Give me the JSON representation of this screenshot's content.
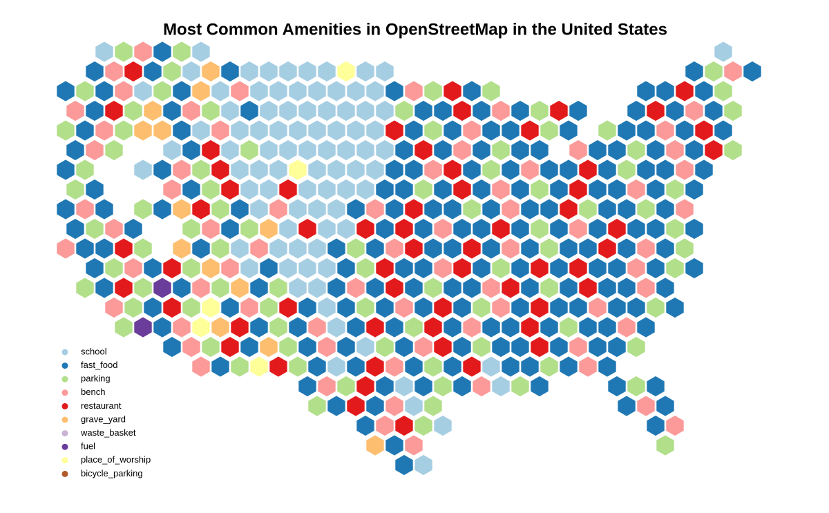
{
  "map": {
    "title": "Most Common Amenities in OpenStreetMap in the United States",
    "legend": [
      {
        "name": "school",
        "color": "#a6cee3"
      },
      {
        "name": "fast_food",
        "color": "#1f78b4"
      },
      {
        "name": "parking",
        "color": "#b2df8a"
      },
      {
        "name": "bench",
        "color": "#fb9a99"
      },
      {
        "name": "restaurant",
        "color": "#e31a1c"
      },
      {
        "name": "grave_yard",
        "color": "#fdbf6f"
      },
      {
        "name": "waste_basket",
        "color": "#cab2d6"
      },
      {
        "name": "fuel",
        "color": "#6a3d9a"
      },
      {
        "name": "place_of_worship",
        "color": "#ffff99"
      },
      {
        "name": "bicycle_parking",
        "color": "#b15928"
      }
    ],
    "hex_grid": [
      [
        null,
        null,
        0,
        2,
        3,
        1,
        2,
        0,
        null,
        null,
        null,
        null,
        null,
        null,
        null,
        null,
        null,
        null,
        null,
        null,
        null,
        null,
        null,
        null,
        null,
        null,
        null,
        null,
        null,
        null,
        null,
        null,
        null,
        null,
        0,
        null
      ],
      [
        null,
        1,
        3,
        4,
        1,
        2,
        0,
        5,
        1,
        0,
        0,
        0,
        0,
        0,
        8,
        0,
        0,
        null,
        null,
        null,
        null,
        null,
        null,
        null,
        null,
        null,
        null,
        null,
        null,
        null,
        null,
        null,
        1,
        2,
        3,
        1
      ],
      [
        1,
        2,
        1,
        3,
        0,
        2,
        1,
        5,
        0,
        3,
        0,
        0,
        0,
        0,
        0,
        0,
        0,
        1,
        3,
        2,
        4,
        1,
        2,
        null,
        null,
        null,
        null,
        null,
        null,
        null,
        1,
        1,
        4,
        1,
        2,
        null
      ],
      [
        3,
        1,
        4,
        2,
        5,
        1,
        3,
        2,
        0,
        1,
        0,
        0,
        0,
        0,
        0,
        0,
        0,
        2,
        1,
        1,
        4,
        1,
        3,
        1,
        2,
        4,
        1,
        null,
        null,
        1,
        4,
        1,
        3,
        1,
        2,
        null
      ],
      [
        2,
        1,
        3,
        2,
        5,
        5,
        1,
        0,
        3,
        0,
        0,
        0,
        0,
        0,
        0,
        0,
        0,
        4,
        1,
        2,
        1,
        3,
        1,
        1,
        4,
        2,
        1,
        null,
        2,
        1,
        1,
        3,
        1,
        4,
        1,
        null
      ],
      [
        1,
        3,
        2,
        null,
        null,
        0,
        1,
        4,
        0,
        2,
        0,
        0,
        0,
        0,
        0,
        0,
        0,
        1,
        4,
        1,
        3,
        1,
        2,
        1,
        1,
        null,
        3,
        1,
        1,
        2,
        1,
        3,
        1,
        4,
        2,
        null
      ],
      [
        1,
        2,
        null,
        null,
        0,
        1,
        3,
        2,
        4,
        0,
        0,
        0,
        8,
        0,
        0,
        0,
        0,
        1,
        1,
        3,
        4,
        1,
        2,
        1,
        3,
        1,
        1,
        4,
        1,
        2,
        1,
        1,
        3,
        1,
        null,
        null
      ],
      [
        2,
        1,
        null,
        null,
        null,
        3,
        1,
        2,
        4,
        0,
        0,
        4,
        0,
        0,
        0,
        0,
        1,
        1,
        2,
        1,
        4,
        1,
        3,
        1,
        2,
        1,
        4,
        1,
        1,
        3,
        1,
        2,
        1,
        null,
        null,
        null
      ],
      [
        1,
        3,
        1,
        null,
        2,
        1,
        5,
        4,
        2,
        1,
        0,
        3,
        0,
        0,
        0,
        1,
        3,
        1,
        4,
        1,
        1,
        2,
        1,
        3,
        1,
        1,
        4,
        2,
        1,
        1,
        2,
        1,
        3,
        null,
        null,
        null
      ],
      [
        1,
        2,
        3,
        1,
        null,
        null,
        2,
        3,
        1,
        2,
        5,
        0,
        4,
        0,
        0,
        4,
        1,
        4,
        1,
        3,
        1,
        1,
        4,
        1,
        2,
        1,
        3,
        1,
        4,
        1,
        1,
        2,
        1,
        null,
        null,
        null
      ],
      [
        3,
        1,
        1,
        4,
        2,
        null,
        5,
        1,
        2,
        0,
        3,
        0,
        0,
        0,
        1,
        2,
        1,
        3,
        4,
        1,
        1,
        4,
        1,
        3,
        1,
        2,
        1,
        1,
        4,
        1,
        3,
        1,
        2,
        null,
        null,
        null
      ],
      [
        null,
        1,
        2,
        3,
        1,
        4,
        2,
        5,
        3,
        0,
        1,
        0,
        0,
        0,
        1,
        2,
        4,
        1,
        1,
        3,
        4,
        1,
        2,
        1,
        4,
        1,
        4,
        1,
        1,
        3,
        1,
        2,
        1,
        null,
        null,
        null
      ],
      [
        null,
        2,
        1,
        4,
        2,
        7,
        1,
        3,
        2,
        5,
        1,
        2,
        0,
        0,
        1,
        3,
        1,
        4,
        1,
        2,
        1,
        1,
        3,
        4,
        1,
        2,
        1,
        4,
        1,
        1,
        3,
        1,
        null,
        null,
        null,
        null
      ],
      [
        null,
        null,
        3,
        2,
        1,
        4,
        2,
        8,
        1,
        3,
        2,
        4,
        1,
        0,
        1,
        2,
        1,
        3,
        1,
        4,
        1,
        2,
        3,
        1,
        4,
        1,
        1,
        3,
        1,
        1,
        2,
        1,
        null,
        null,
        null,
        null
      ],
      [
        null,
        null,
        null,
        2,
        7,
        1,
        3,
        8,
        5,
        4,
        1,
        2,
        1,
        3,
        0,
        1,
        4,
        1,
        2,
        4,
        1,
        3,
        1,
        1,
        4,
        1,
        2,
        1,
        1,
        3,
        1,
        null,
        null,
        null,
        null,
        null
      ],
      [
        null,
        null,
        null,
        null,
        null,
        1,
        3,
        2,
        4,
        1,
        5,
        2,
        1,
        3,
        1,
        0,
        2,
        1,
        3,
        4,
        1,
        2,
        1,
        1,
        4,
        1,
        3,
        1,
        1,
        2,
        null,
        null,
        null,
        null,
        null,
        null
      ],
      [
        null,
        null,
        null,
        null,
        null,
        null,
        null,
        3,
        1,
        2,
        8,
        4,
        2,
        1,
        0,
        1,
        4,
        3,
        1,
        2,
        1,
        4,
        0,
        1,
        1,
        2,
        1,
        3,
        1,
        null,
        null,
        null,
        null,
        null,
        null,
        null
      ],
      [
        null,
        null,
        null,
        null,
        null,
        null,
        null,
        null,
        null,
        null,
        null,
        null,
        1,
        3,
        2,
        4,
        1,
        0,
        1,
        2,
        1,
        3,
        0,
        2,
        1,
        null,
        null,
        null,
        1,
        2,
        1,
        null,
        null,
        null,
        null,
        null
      ],
      [
        null,
        null,
        null,
        null,
        null,
        null,
        null,
        null,
        null,
        null,
        null,
        null,
        null,
        2,
        1,
        4,
        1,
        3,
        0,
        2,
        null,
        null,
        null,
        null,
        null,
        null,
        null,
        null,
        null,
        1,
        3,
        1,
        null,
        null,
        null,
        null
      ],
      [
        null,
        null,
        null,
        null,
        null,
        null,
        null,
        null,
        null,
        null,
        null,
        null,
        null,
        null,
        null,
        1,
        3,
        4,
        2,
        0,
        null,
        null,
        null,
        null,
        null,
        null,
        null,
        null,
        null,
        null,
        1,
        3,
        null,
        null,
        null,
        null
      ],
      [
        null,
        null,
        null,
        null,
        null,
        null,
        null,
        null,
        null,
        null,
        null,
        null,
        null,
        null,
        null,
        null,
        5,
        1,
        3,
        null,
        null,
        null,
        null,
        null,
        null,
        null,
        null,
        null,
        null,
        null,
        null,
        2,
        null,
        null,
        null,
        null
      ],
      [
        null,
        null,
        null,
        null,
        null,
        null,
        null,
        null,
        null,
        null,
        null,
        null,
        null,
        null,
        null,
        null,
        null,
        1,
        0,
        null,
        null,
        null,
        null,
        null,
        null,
        null,
        null,
        null,
        null,
        null,
        null,
        null,
        null,
        null,
        null,
        null
      ]
    ]
  }
}
